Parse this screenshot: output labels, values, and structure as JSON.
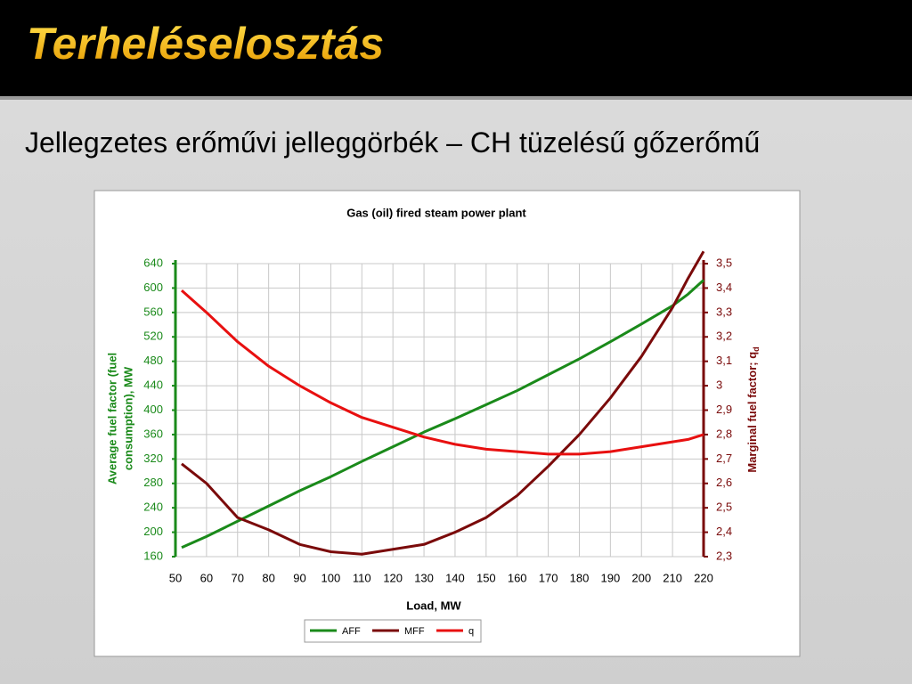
{
  "header": {
    "title": "Terheléselosztás"
  },
  "subtitle": "Jellegzetes erőművi jelleggörbék – CH tüzelésű gőzerőmű",
  "chart_data": {
    "type": "line",
    "title": "Gas (oil) fired steam power plant",
    "x_label": "Load, MW",
    "y_label": [
      "Average fuel factor (fuel",
      "consumption), MW"
    ],
    "y2_label": "Marginal fuel factor; q",
    "y2_label_sub": "d",
    "x": [
      52,
      60,
      70,
      80,
      90,
      100,
      110,
      120,
      130,
      140,
      150,
      160,
      170,
      180,
      190,
      200,
      210,
      215,
      220
    ],
    "series": [
      {
        "name": "AFF",
        "color": "#1a8a1a",
        "values": [
          175,
          193,
          218,
          243,
          268,
          291,
          316,
          340,
          364,
          386,
          409,
          432,
          458,
          484,
          512,
          541,
          571,
          590,
          613
        ]
      },
      {
        "name": "MFF",
        "color": "#7a0a0a",
        "axis": "y2",
        "values": [
          2.68,
          2.6,
          2.46,
          2.41,
          2.35,
          2.32,
          2.31,
          2.33,
          2.35,
          2.4,
          2.46,
          2.55,
          2.67,
          2.8,
          2.95,
          3.12,
          3.32,
          3.44,
          3.55
        ]
      },
      {
        "name": "q",
        "color": "#e81010",
        "axis": "y2",
        "values": [
          3.39,
          3.3,
          3.18,
          3.08,
          3.0,
          2.93,
          2.87,
          2.83,
          2.79,
          2.76,
          2.74,
          2.73,
          2.72,
          2.72,
          2.73,
          2.75,
          2.77,
          2.78,
          2.8
        ]
      }
    ],
    "xlim": [
      50,
      220
    ],
    "xticks": [
      50,
      60,
      70,
      80,
      90,
      100,
      110,
      120,
      130,
      140,
      150,
      160,
      170,
      180,
      190,
      200,
      210,
      220
    ],
    "ylim": [
      160,
      640
    ],
    "yticks": [
      160,
      200,
      240,
      280,
      320,
      360,
      400,
      440,
      480,
      520,
      560,
      600,
      640
    ],
    "y2lim": [
      2.3,
      3.5
    ],
    "y2ticks": [
      {
        "value": 2.3,
        "label": "2,3"
      },
      {
        "value": 2.4,
        "label": "2,4"
      },
      {
        "value": 2.5,
        "label": "2,5"
      },
      {
        "value": 2.6,
        "label": "2,6"
      },
      {
        "value": 2.7,
        "label": "2,7"
      },
      {
        "value": 2.8,
        "label": "2,8"
      },
      {
        "value": 2.9,
        "label": "2,9"
      },
      3,
      {
        "value": 3.1,
        "label": "3,1"
      },
      {
        "value": 3.2,
        "label": "3,2"
      },
      {
        "value": 3.3,
        "label": "3,3"
      },
      {
        "value": 3.4,
        "label": "3,4"
      },
      {
        "value": 3.5,
        "label": "3,5"
      }
    ],
    "grid": true,
    "y_axis_color": "#1a8a1a",
    "y2_axis_color": "#7a0a0a",
    "legend": "bottom"
  }
}
